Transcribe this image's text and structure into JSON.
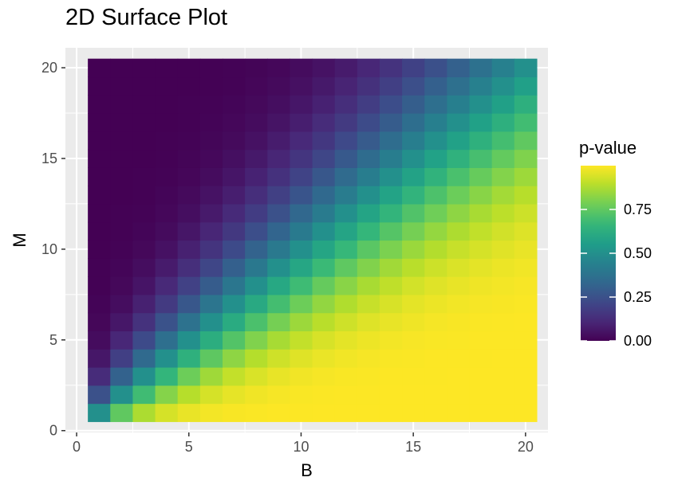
{
  "title": "2D Surface Plot",
  "chart_data": {
    "type": "heatmap",
    "title": "2D Surface Plot",
    "xlabel": "B",
    "ylabel": "M",
    "x_ticks": [
      0,
      5,
      10,
      15,
      20
    ],
    "y_ticks": [
      0,
      5,
      10,
      15,
      20
    ],
    "x_tick_labels": [
      "0",
      "5",
      "10",
      "15",
      "20"
    ],
    "y_tick_labels": [
      "0",
      "5",
      "10",
      "15",
      "20"
    ],
    "xlim": [
      -0.5,
      21
    ],
    "ylim": [
      -0.1,
      21.1
    ],
    "x": [
      1,
      2,
      3,
      4,
      5,
      6,
      7,
      8,
      9,
      10,
      11,
      12,
      13,
      14,
      15,
      16,
      17,
      18,
      19,
      20
    ],
    "y": [
      1,
      2,
      3,
      4,
      5,
      6,
      7,
      8,
      9,
      10,
      11,
      12,
      13,
      14,
      15,
      16,
      17,
      18,
      19,
      20
    ],
    "value_rule": "p = P(Binomial(M + B - 1, 1/2) >= M)",
    "values": [
      [
        0.5,
        0.75,
        0.875,
        0.938,
        0.969,
        0.984,
        0.992,
        0.996,
        0.998,
        0.999,
        1.0,
        1.0,
        1.0,
        1.0,
        1.0,
        1.0,
        1.0,
        1.0,
        1.0,
        1.0
      ],
      [
        0.25,
        0.5,
        0.688,
        0.813,
        0.891,
        0.938,
        0.965,
        0.98,
        0.989,
        0.994,
        0.997,
        0.998,
        0.999,
        1.0,
        1.0,
        1.0,
        1.0,
        1.0,
        1.0,
        1.0
      ],
      [
        0.125,
        0.313,
        0.5,
        0.656,
        0.773,
        0.855,
        0.91,
        0.945,
        0.967,
        0.981,
        0.989,
        0.994,
        0.996,
        0.998,
        0.999,
        0.999,
        1.0,
        1.0,
        1.0,
        1.0
      ],
      [
        0.063,
        0.188,
        0.344,
        0.5,
        0.637,
        0.746,
        0.828,
        0.887,
        0.927,
        0.954,
        0.971,
        0.982,
        0.989,
        0.994,
        0.996,
        0.998,
        0.999,
        0.999,
        1.0,
        1.0
      ],
      [
        0.031,
        0.109,
        0.227,
        0.363,
        0.5,
        0.623,
        0.726,
        0.806,
        0.867,
        0.91,
        0.941,
        0.962,
        0.975,
        0.985,
        0.99,
        0.994,
        0.996,
        0.998,
        0.999,
        0.999
      ],
      [
        0.016,
        0.063,
        0.145,
        0.254,
        0.377,
        0.5,
        0.613,
        0.709,
        0.788,
        0.849,
        0.895,
        0.928,
        0.952,
        0.968,
        0.979,
        0.987,
        0.992,
        0.995,
        0.997,
        0.998
      ],
      [
        0.008,
        0.035,
        0.09,
        0.172,
        0.274,
        0.387,
        0.5,
        0.605,
        0.696,
        0.773,
        0.834,
        0.881,
        0.916,
        0.942,
        0.961,
        0.974,
        0.983,
        0.989,
        0.993,
        0.995
      ],
      [
        0.004,
        0.02,
        0.055,
        0.113,
        0.194,
        0.291,
        0.395,
        0.5,
        0.598,
        0.685,
        0.76,
        0.82,
        0.868,
        0.905,
        0.933,
        0.953,
        0.968,
        0.978,
        0.985,
        0.99
      ],
      [
        0.002,
        0.011,
        0.033,
        0.073,
        0.133,
        0.212,
        0.304,
        0.402,
        0.5,
        0.593,
        0.676,
        0.748,
        0.808,
        0.857,
        0.895,
        0.924,
        0.946,
        0.962,
        0.974,
        0.982
      ],
      [
        0.001,
        0.006,
        0.019,
        0.046,
        0.09,
        0.151,
        0.227,
        0.315,
        0.407,
        0.5,
        0.588,
        0.668,
        0.738,
        0.798,
        0.846,
        0.885,
        0.916,
        0.939,
        0.956,
        0.969
      ],
      [
        0.0,
        0.003,
        0.011,
        0.029,
        0.059,
        0.105,
        0.166,
        0.24,
        0.324,
        0.412,
        0.5,
        0.584,
        0.661,
        0.729,
        0.788,
        0.837,
        0.876,
        0.908,
        0.932,
        0.951
      ],
      [
        0.0,
        0.002,
        0.006,
        0.018,
        0.038,
        0.072,
        0.119,
        0.18,
        0.252,
        0.332,
        0.416,
        0.5,
        0.581,
        0.655,
        0.721,
        0.779,
        0.828,
        0.868,
        0.9,
        0.925
      ],
      [
        0.0,
        0.001,
        0.004,
        0.011,
        0.025,
        0.048,
        0.084,
        0.132,
        0.192,
        0.262,
        0.339,
        0.419,
        0.5,
        0.578,
        0.649,
        0.714,
        0.771,
        0.819,
        0.86,
        0.892
      ],
      [
        0.0,
        0.0,
        0.002,
        0.006,
        0.015,
        0.032,
        0.058,
        0.095,
        0.143,
        0.202,
        0.271,
        0.345,
        0.422,
        0.5,
        0.575,
        0.644,
        0.708,
        0.763,
        0.811,
        0.852
      ],
      [
        0.0,
        0.0,
        0.001,
        0.004,
        0.01,
        0.021,
        0.039,
        0.067,
        0.105,
        0.154,
        0.212,
        0.279,
        0.351,
        0.425,
        0.5,
        0.572,
        0.64,
        0.702,
        0.757,
        0.804
      ],
      [
        0.0,
        0.0,
        0.001,
        0.002,
        0.006,
        0.013,
        0.026,
        0.047,
        0.076,
        0.115,
        0.163,
        0.221,
        0.286,
        0.356,
        0.428,
        0.5,
        0.57,
        0.636,
        0.696,
        0.751
      ],
      [
        0.0,
        0.0,
        0.0,
        0.001,
        0.004,
        0.008,
        0.017,
        0.032,
        0.054,
        0.084,
        0.124,
        0.172,
        0.229,
        0.292,
        0.36,
        0.43,
        0.5,
        0.568,
        0.632,
        0.691
      ],
      [
        0.0,
        0.0,
        0.0,
        0.001,
        0.002,
        0.005,
        0.011,
        0.022,
        0.038,
        0.061,
        0.092,
        0.132,
        0.181,
        0.237,
        0.298,
        0.364,
        0.432,
        0.5,
        0.566,
        0.629
      ],
      [
        0.0,
        0.0,
        0.0,
        0.0,
        0.001,
        0.003,
        0.007,
        0.015,
        0.026,
        0.044,
        0.068,
        0.1,
        0.14,
        0.189,
        0.243,
        0.304,
        0.368,
        0.434,
        0.5,
        0.564
      ],
      [
        0.0,
        0.0,
        0.0,
        0.0,
        0.001,
        0.002,
        0.005,
        0.01,
        0.018,
        0.031,
        0.049,
        0.075,
        0.108,
        0.148,
        0.196,
        0.249,
        0.309,
        0.371,
        0.436,
        0.5
      ]
    ],
    "values_layout": "values[M-1][B-1]",
    "colorscale": "viridis",
    "colorscale_stops": [
      "#440154",
      "#482878",
      "#3e4989",
      "#31688e",
      "#26828e",
      "#1f9e89",
      "#35b779",
      "#6ece58",
      "#b5de2b",
      "#fde725"
    ],
    "legend": {
      "title": "p-value",
      "ticks": [
        0.0,
        0.25,
        0.5,
        0.75
      ],
      "tick_labels": [
        "0.00",
        "0.25",
        "0.50",
        "0.75"
      ],
      "range": [
        0,
        1
      ],
      "placement": "right"
    },
    "grid": true,
    "panel_background": "#ebebeb",
    "grid_color": "#ffffff"
  }
}
